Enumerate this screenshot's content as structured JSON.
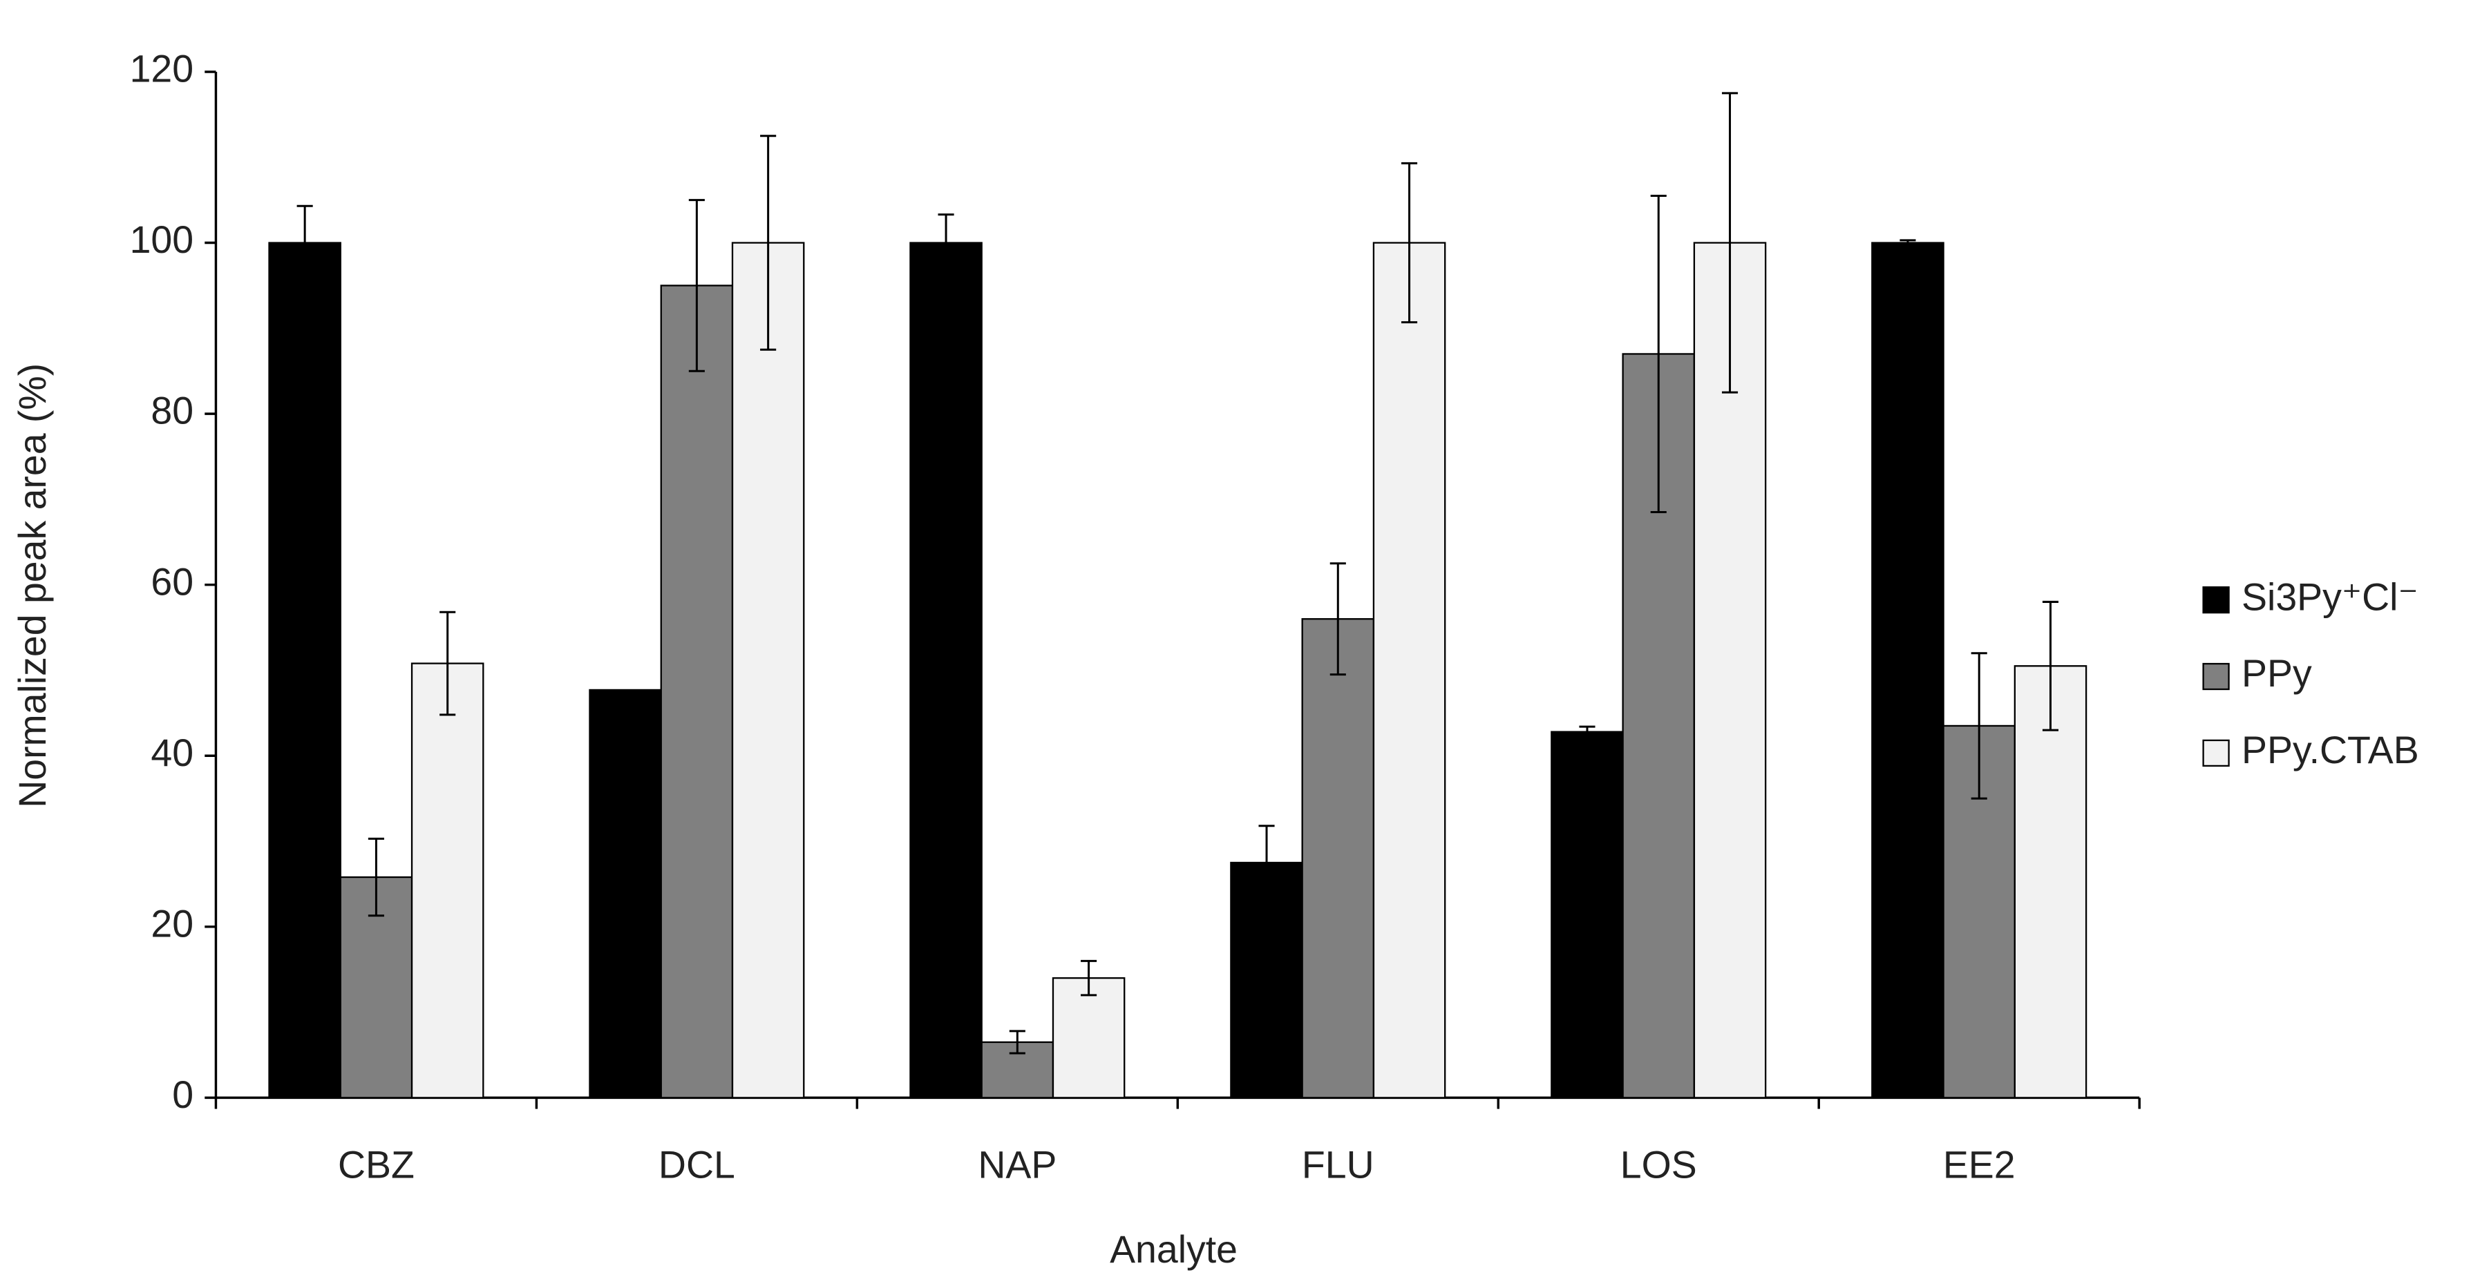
{
  "chart_data": {
    "type": "bar",
    "x_label": "Analyte",
    "y_label": "Normalized peak area (%)",
    "categories": [
      "CBZ",
      "DCL",
      "NAP",
      "FLU",
      "LOS",
      "EE2"
    ],
    "series": [
      {
        "name": "Si3Py⁺Cl⁻",
        "color": "#000000",
        "values": [
          100,
          47.7,
          100,
          27.5,
          42.8,
          100
        ],
        "errors": [
          4.3,
          null,
          3.3,
          4.3,
          0.6,
          0.3
        ]
      },
      {
        "name": "PPy",
        "color": "#808080",
        "values": [
          25.8,
          95,
          6.5,
          56,
          87,
          43.5
        ],
        "errors": [
          4.5,
          10,
          1.3,
          6.5,
          18.5,
          8.5
        ]
      },
      {
        "name": "PPy.CTAB",
        "color": "#f2f2f2",
        "values": [
          50.8,
          100,
          14,
          100,
          100,
          50.5
        ],
        "errors": [
          6,
          12.5,
          2,
          9.3,
          17.5,
          7.5
        ]
      }
    ],
    "ylim": [
      0,
      120
    ],
    "yticks": [
      0,
      20,
      40,
      60,
      80,
      100,
      120
    ],
    "grid": false,
    "legend": "right"
  }
}
